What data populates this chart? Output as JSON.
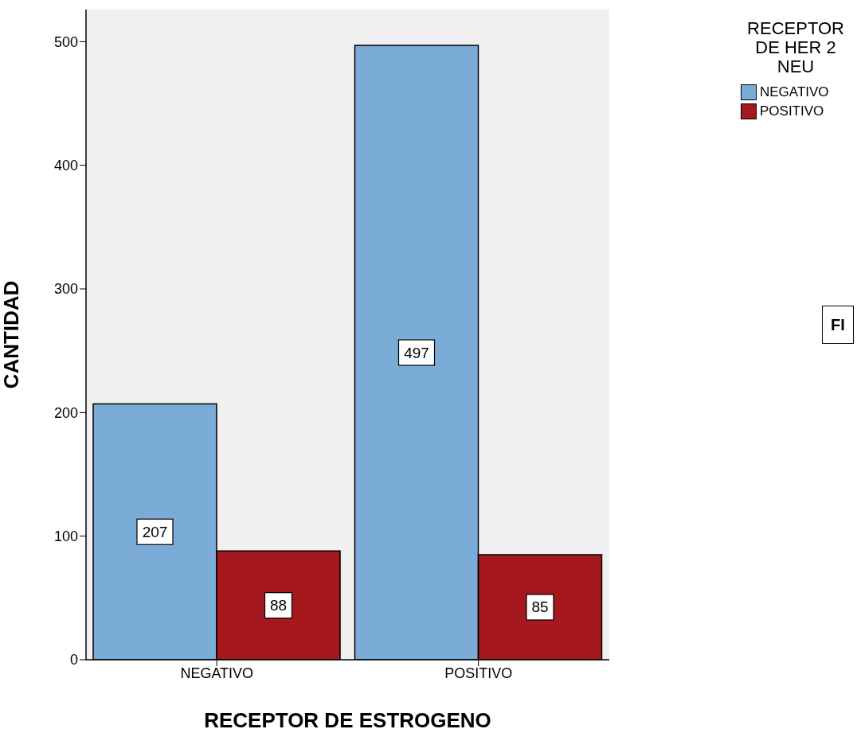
{
  "chart_data": {
    "type": "bar",
    "xlabel": "RECEPTOR DE ESTROGENO",
    "ylabel": "CANTIDAD",
    "legend_title": "RECEPTOR DE HER 2 NEU",
    "categories": [
      "NEGATIVO",
      "POSITIVO"
    ],
    "series": [
      {
        "name": "NEGATIVO",
        "color": "#7babd7",
        "values": [
          207,
          497
        ]
      },
      {
        "name": "POSITIVO",
        "color": "#a5181d",
        "values": [
          88,
          85
        ]
      }
    ],
    "ylim": [
      0,
      526
    ],
    "yticks": [
      0,
      100,
      200,
      300,
      400,
      500
    ],
    "data_labels": true,
    "legend": "top right",
    "annotations": [
      "FI"
    ]
  }
}
